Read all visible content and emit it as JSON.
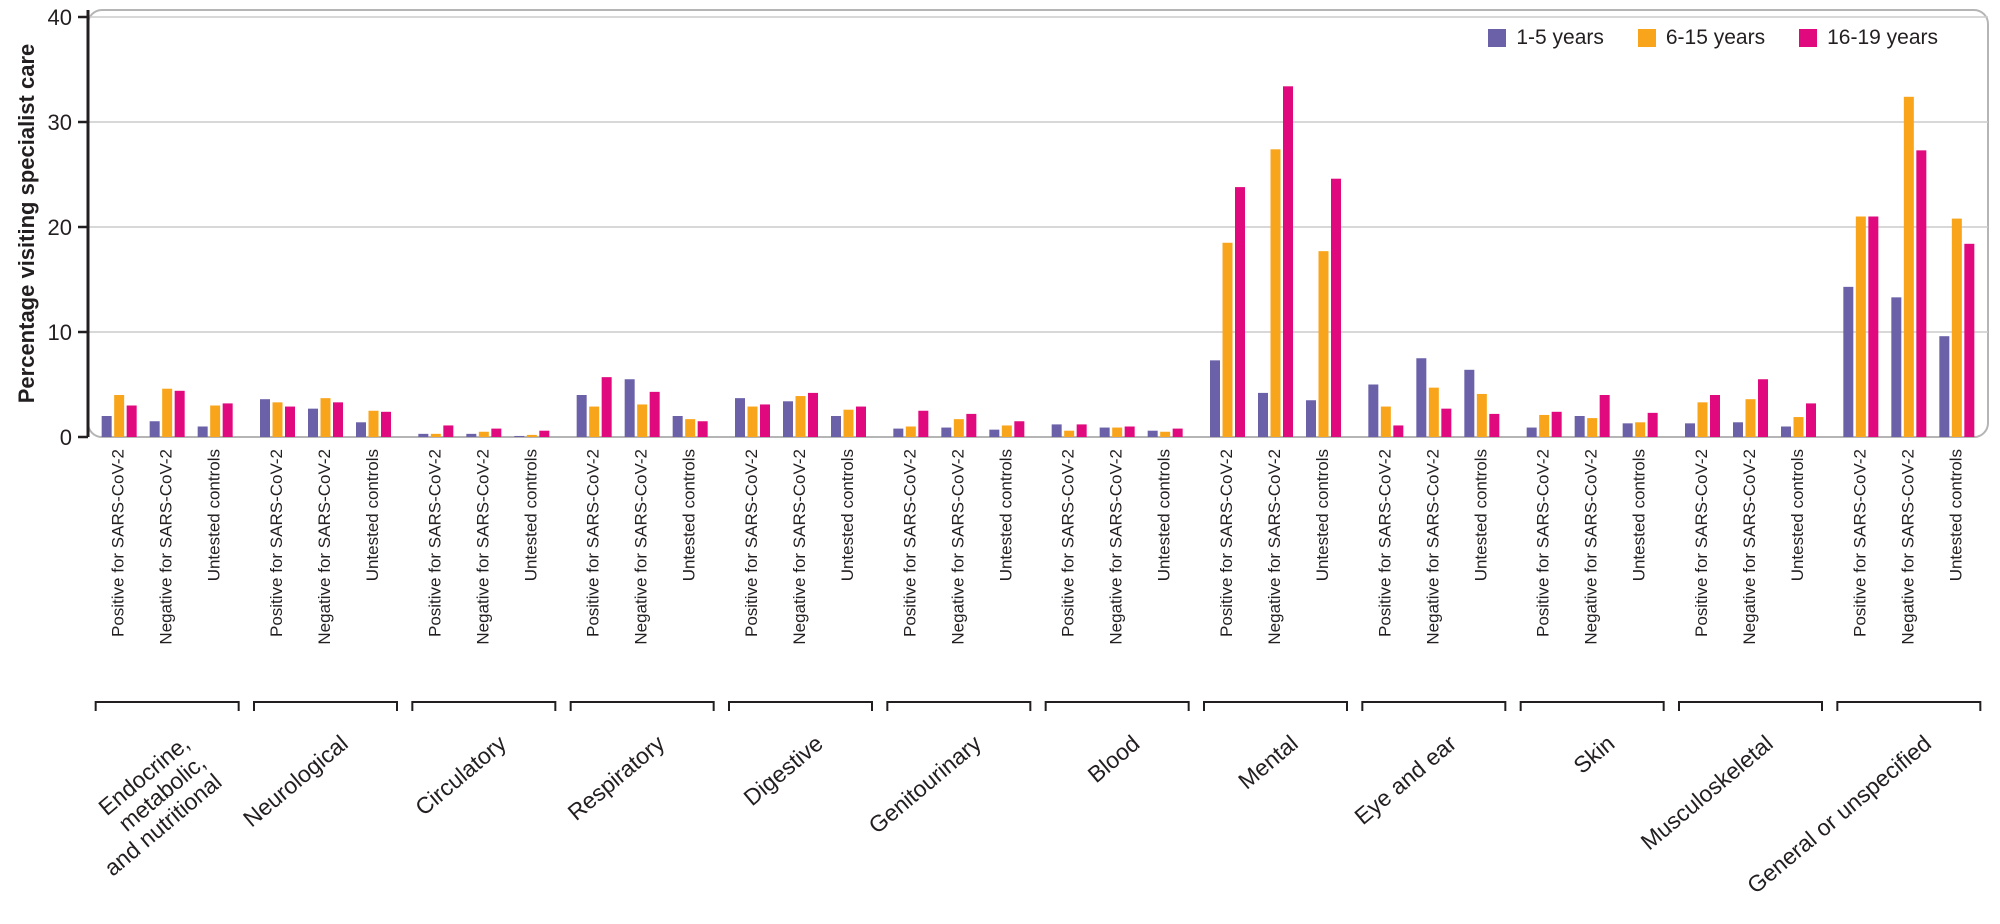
{
  "chart_data": {
    "type": "bar",
    "title": "",
    "ylabel": "Percentage visiting specialist care",
    "ylim": [
      0,
      40
    ],
    "yticks": [
      0,
      10,
      20,
      30,
      40
    ],
    "grid": true,
    "legend_position": "top-right",
    "series_meta": [
      {
        "name": "1-5 years",
        "color": "#6A61A9"
      },
      {
        "name": "6-15 years",
        "color": "#F9A51B"
      },
      {
        "name": "16-19 years",
        "color": "#E00A7E"
      }
    ],
    "subgroups": [
      "Positive for SARS-CoV-2",
      "Negative for SARS-CoV-2",
      "Untested controls"
    ],
    "categories": [
      {
        "label": "Endocrine, metabolic, and nutritional",
        "label_lines": [
          "Endocrine,",
          "metabolic,",
          "and nutritional"
        ],
        "values": [
          [
            2.0,
            4.0,
            3.0
          ],
          [
            1.5,
            4.6,
            4.4
          ],
          [
            1.0,
            3.0,
            3.2
          ]
        ]
      },
      {
        "label": "Neurological",
        "label_lines": [
          "Neurological"
        ],
        "values": [
          [
            3.6,
            3.3,
            2.9
          ],
          [
            2.7,
            3.7,
            3.3
          ],
          [
            1.4,
            2.5,
            2.4
          ]
        ]
      },
      {
        "label": "Circulatory",
        "label_lines": [
          "Circulatory"
        ],
        "values": [
          [
            0.3,
            0.3,
            1.1
          ],
          [
            0.3,
            0.5,
            0.8
          ],
          [
            0.1,
            0.2,
            0.6
          ]
        ]
      },
      {
        "label": "Respiratory",
        "label_lines": [
          "Respiratory"
        ],
        "values": [
          [
            4.0,
            2.9,
            5.7
          ],
          [
            5.5,
            3.1,
            4.3
          ],
          [
            2.0,
            1.7,
            1.5
          ]
        ]
      },
      {
        "label": "Digestive",
        "label_lines": [
          "Digestive"
        ],
        "values": [
          [
            3.7,
            2.9,
            3.1
          ],
          [
            3.4,
            3.9,
            4.2
          ],
          [
            2.0,
            2.6,
            2.9
          ]
        ]
      },
      {
        "label": "Genitourinary",
        "label_lines": [
          "Genitourinary"
        ],
        "values": [
          [
            0.8,
            1.0,
            2.5
          ],
          [
            0.9,
            1.7,
            2.2
          ],
          [
            0.7,
            1.1,
            1.5
          ]
        ]
      },
      {
        "label": "Blood",
        "label_lines": [
          "Blood"
        ],
        "values": [
          [
            1.2,
            0.6,
            1.2
          ],
          [
            0.9,
            0.9,
            1.0
          ],
          [
            0.6,
            0.5,
            0.8
          ]
        ]
      },
      {
        "label": "Mental",
        "label_lines": [
          "Mental"
        ],
        "values": [
          [
            7.3,
            18.5,
            23.8
          ],
          [
            4.2,
            27.4,
            33.4
          ],
          [
            3.5,
            17.7,
            24.6
          ]
        ]
      },
      {
        "label": "Eye and ear",
        "label_lines": [
          "Eye and ear"
        ],
        "values": [
          [
            5.0,
            2.9,
            1.1
          ],
          [
            7.5,
            4.7,
            2.7
          ],
          [
            6.4,
            4.1,
            2.2
          ]
        ]
      },
      {
        "label": "Skin",
        "label_lines": [
          "Skin"
        ],
        "values": [
          [
            0.9,
            2.1,
            2.4
          ],
          [
            2.0,
            1.8,
            4.0
          ],
          [
            1.3,
            1.4,
            2.3
          ]
        ]
      },
      {
        "label": "Musculoskeletal",
        "label_lines": [
          "Musculoskeletal"
        ],
        "values": [
          [
            1.3,
            3.3,
            4.0
          ],
          [
            1.4,
            3.6,
            5.5
          ],
          [
            1.0,
            1.9,
            3.2
          ]
        ]
      },
      {
        "label": "General or unspecified",
        "label_lines": [
          "General or unspecified"
        ],
        "values": [
          [
            14.3,
            21.0,
            21.0
          ],
          [
            13.3,
            32.4,
            27.3
          ],
          [
            9.6,
            20.8,
            18.4
          ]
        ]
      }
    ],
    "style": {
      "axis_color": "#231f20",
      "grid_color": "#cccccc",
      "border_color": "#b5b5b5",
      "text_color": "#231f20"
    }
  }
}
